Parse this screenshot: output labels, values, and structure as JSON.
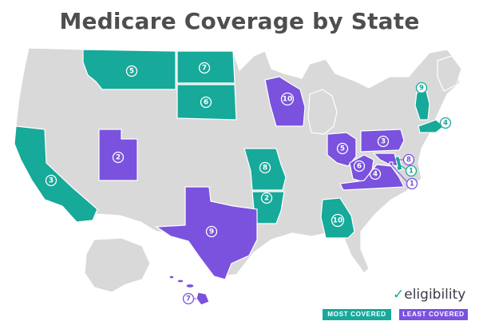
{
  "title": "Medicare Coverage by State",
  "logo": {
    "mark": "✓",
    "text": "eligibility"
  },
  "legend": {
    "most": "MOST COVERED",
    "least": "LEAST COVERED"
  },
  "colors": {
    "most": "#17a99a",
    "least": "#7a52de",
    "none": "#d9d9d9"
  },
  "states": [
    {
      "abbr": "MT",
      "category": "most",
      "rank": "5"
    },
    {
      "abbr": "ND",
      "category": "most",
      "rank": "7"
    },
    {
      "abbr": "SD",
      "category": "most",
      "rank": "6"
    },
    {
      "abbr": "CA",
      "category": "most",
      "rank": "3"
    },
    {
      "abbr": "MO",
      "category": "most",
      "rank": "8"
    },
    {
      "abbr": "AR",
      "category": "most",
      "rank": "2"
    },
    {
      "abbr": "GA",
      "category": "most",
      "rank": "10"
    },
    {
      "abbr": "VT",
      "category": "most",
      "rank": "9"
    },
    {
      "abbr": "MA",
      "category": "most",
      "rank": "4"
    },
    {
      "abbr": "DE",
      "category": "most",
      "rank": "1"
    },
    {
      "abbr": "UT",
      "category": "least",
      "rank": "2"
    },
    {
      "abbr": "WI",
      "category": "least",
      "rank": "10"
    },
    {
      "abbr": "TX",
      "category": "least",
      "rank": "9"
    },
    {
      "abbr": "OH",
      "category": "least",
      "rank": "5"
    },
    {
      "abbr": "PA",
      "category": "least",
      "rank": "3"
    },
    {
      "abbr": "WV",
      "category": "least",
      "rank": "6"
    },
    {
      "abbr": "VA",
      "category": "least",
      "rank": "4"
    },
    {
      "abbr": "MD",
      "category": "least",
      "rank": "8"
    },
    {
      "abbr": "DC",
      "category": "least",
      "rank": "1"
    },
    {
      "abbr": "HI",
      "category": "least",
      "rank": "7"
    }
  ]
}
